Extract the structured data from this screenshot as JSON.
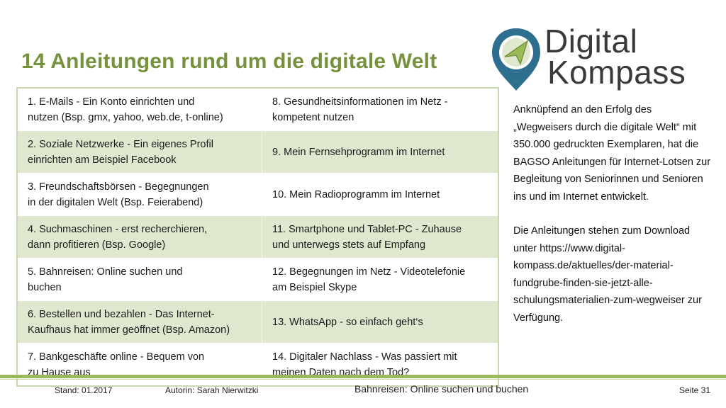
{
  "title": "14 Anleitungen rund um die digitale Welt",
  "logo": {
    "line1": "Digital",
    "line2": "Kompass"
  },
  "rows": [
    {
      "left": "1. E-Mails - Ein Konto einrichten und\n    nutzen (Bsp. gmx, yahoo, web.de, t-online)",
      "right": "8. Gesundheitsinformationen im Netz -\n    kompetent nutzen"
    },
    {
      "left": "2. Soziale Netzwerke - Ein eigenes Profil\n    einrichten am Beispiel Facebook",
      "right": "9. Mein Fernsehprogramm im Internet"
    },
    {
      "left": "3. Freundschaftsbörsen - Begegnungen\n    in der digitalen Welt (Bsp. Feierabend)",
      "right": "10. Mein Radioprogramm im Internet"
    },
    {
      "left": "4. Suchmaschinen - erst recherchieren,\n    dann profitieren (Bsp. Google)",
      "right": "11. Smartphone und Tablet-PC - Zuhause\n      und unterwegs stets auf Empfang"
    },
    {
      "left": "5. Bahnreisen: Online suchen und\n    buchen",
      "right": "12. Begegnungen im Netz - Videotelefonie\n      am Beispiel Skype"
    },
    {
      "left": "6. Bestellen und bezahlen - Das Internet-\n    Kaufhaus hat immer geöffnet (Bsp. Amazon)",
      "right": "13. WhatsApp - so einfach geht‘s"
    },
    {
      "left": "7. Bankgeschäfte online - Bequem von\n    zu Hause aus",
      "right": "14. Digitaler Nachlass - Was passiert mit\n      meinen Daten nach dem Tod?"
    }
  ],
  "side": {
    "p1": "Anknüpfend an den Erfolg des „Wegweisers durch die digitale Welt“ mit 350.000 gedruckten Exemplaren, hat die BAGSO Anleitungen für Internet-Lotsen zur Begleitung von Seniorinnen und Senioren ins und im Internet entwickelt.",
    "p2": "Die Anleitungen stehen zum Download unter https://www.digital-kompass.de/aktuelles/der-material-fundgrube-finden-sie-jetzt-alle-schulungsmaterialien-zum-wegweiser zur Verfügung."
  },
  "footer": {
    "stand": "Stand: 01.2017",
    "author": "Autorin: Sarah Nierwitzki",
    "topic": "Bahnreisen: Online suchen und buchen",
    "page": "Seite 31"
  },
  "colors": {
    "accent": "#76923c",
    "row_shade": "#dfe8cf",
    "bar": "#9bbb59",
    "logo_pin": "#2e6e8e"
  }
}
